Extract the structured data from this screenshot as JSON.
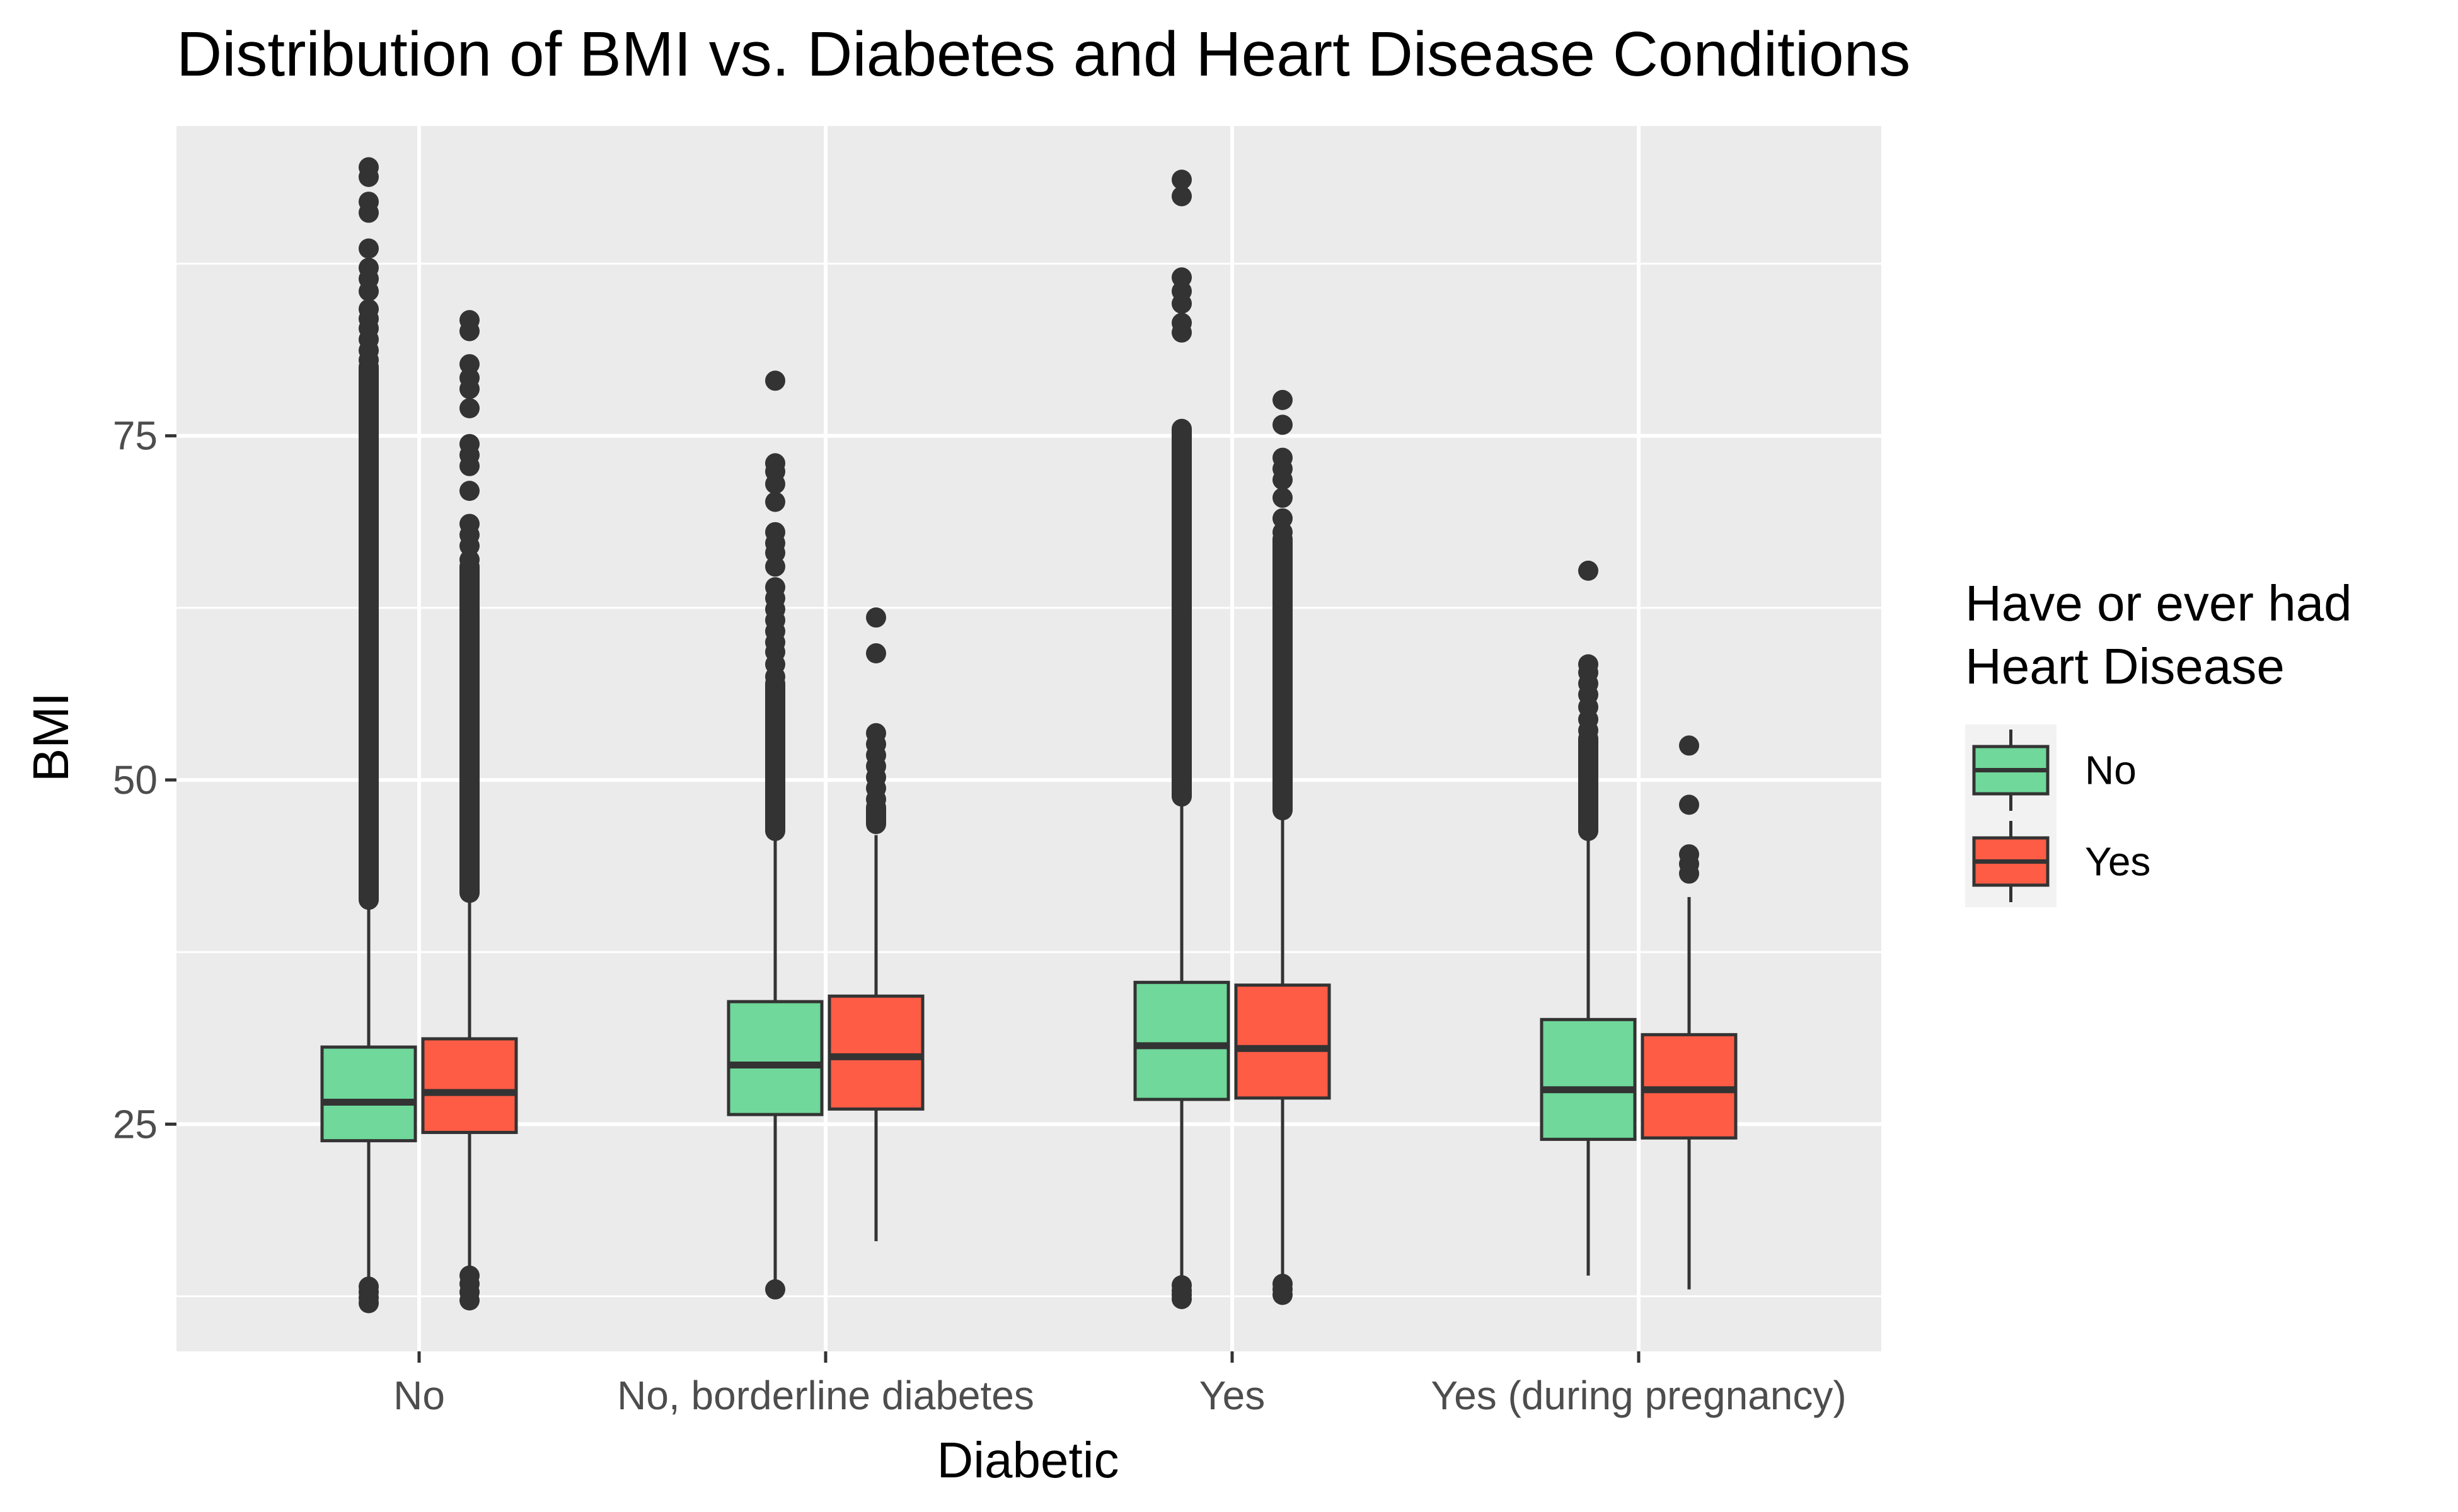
{
  "chart_data": {
    "type": "boxplot",
    "title": "Distribution of BMI vs. Diabetes and Heart Disease Conditions",
    "xlabel": "Diabetic",
    "ylabel": "BMI",
    "categories": [
      "No",
      "No, borderline diabetes",
      "Yes",
      "Yes (during pregnancy)"
    ],
    "ylim": [
      8.5,
      97.5
    ],
    "yticks": [
      25,
      50,
      75
    ],
    "grid": true,
    "legend": {
      "title_lines": [
        "Have or ever had",
        "Heart Disease"
      ],
      "placement": "right"
    },
    "colors": {
      "No": "#6fd89a",
      "Yes": "#ff5c45",
      "panel": "#ebebeb",
      "outline": "#333333"
    },
    "series": [
      {
        "name": "No",
        "boxes": [
          {
            "lower": 12.5,
            "q1": 23.8,
            "median": 26.6,
            "q3": 30.6,
            "upper": 41,
            "outliers_low": [
              12,
              12.4,
              12.8,
              13.2
            ],
            "outliers_high_dense": [
              41.3,
              80
            ],
            "outliers_high": [
              80.5,
              81.2,
              82,
              82.8,
              83.5,
              84.2,
              85.5,
              86.4,
              87.2,
              88.6,
              91.2,
              92,
              93.8,
              94.5
            ]
          },
          {
            "lower": 12.9,
            "q1": 25.7,
            "median": 29.3,
            "q3": 33.9,
            "upper": 46,
            "outliers_low": [
              13
            ],
            "outliers_high_dense": [
              46.3,
              57
            ],
            "outliers_high": [
              57.5,
              58.4,
              59.3,
              60,
              60.8,
              61.6,
              62.4,
              63.2,
              64,
              65.5,
              66.5,
              67.2,
              68,
              70.2,
              71.5,
              72.4,
              73,
              79
            ]
          },
          {
            "lower": 12.5,
            "q1": 26.8,
            "median": 30.7,
            "q3": 35.3,
            "upper": 48.5,
            "outliers_low": [
              12.3,
              12.6,
              12.9,
              13.3
            ],
            "outliers_high_dense": [
              48.8,
              75.5
            ],
            "outliers_high": [
              82.5,
              83.2,
              84.6,
              85.5,
              86.5,
              92.4,
              93.6
            ]
          },
          {
            "lower": 14,
            "q1": 23.9,
            "median": 27.5,
            "q3": 32.6,
            "upper": 46,
            "outliers_low": [],
            "outliers_high_dense": [
              46.3,
              53
            ],
            "outliers_high": [
              53.6,
              54.4,
              55.3,
              56.2,
              57,
              57.8,
              58.4,
              65.2
            ]
          }
        ]
      },
      {
        "name": "Yes",
        "boxes": [
          {
            "lower": 12.3,
            "q1": 24.4,
            "median": 27.3,
            "q3": 31.2,
            "upper": 41.5,
            "outliers_low": [
              12.2,
              12.8,
              13.4,
              14
            ],
            "outliers_high_dense": [
              41.8,
              65.5
            ],
            "outliers_high": [
              66,
              67,
              67.8,
              68.6,
              71,
              72.8,
              73.6,
              74.4,
              77,
              78.4,
              79.2,
              80.2,
              82.6,
              83.4
            ]
          },
          {
            "lower": 16.5,
            "q1": 26.1,
            "median": 29.9,
            "q3": 34.3,
            "upper": 46,
            "outliers_low": [],
            "outliers_high_dense": [
              46.8,
              48
            ],
            "outliers_high": [
              48.6,
              49.4,
              50.2,
              51,
              51.8,
              52.6,
              53.4,
              59.2,
              61.8
            ]
          },
          {
            "lower": 12.6,
            "q1": 26.9,
            "median": 30.5,
            "q3": 35.1,
            "upper": 47.5,
            "outliers_low": [
              12.6,
              13,
              13.4
            ],
            "outliers_high_dense": [
              47.8,
              67.5
            ],
            "outliers_high": [
              68,
              69,
              70.5,
              71.8,
              72.6,
              73.4,
              75.8,
              77.6
            ]
          },
          {
            "lower": 13,
            "q1": 24,
            "median": 27.5,
            "q3": 31.5,
            "upper": 41.5,
            "outliers_low": [],
            "outliers_high_dense": [],
            "outliers_high": [
              43.2,
              43.9,
              44.6,
              48.2,
              52.5
            ]
          }
        ]
      }
    ]
  }
}
